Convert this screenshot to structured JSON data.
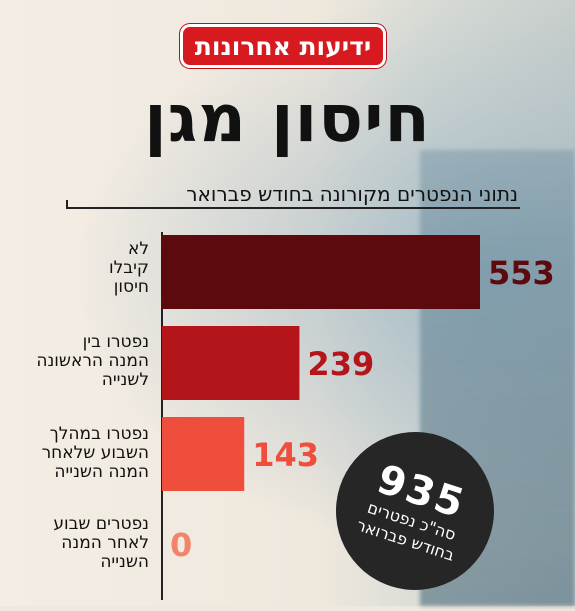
{
  "brand": {
    "logo_text": "ידיעות אחרונות",
    "logo_color": "#d71920"
  },
  "headline": "חיסון מגן",
  "chart_data": {
    "type": "bar",
    "orientation": "horizontal",
    "title": "נתוני הנפטרים מקורונה בחודש פברואר",
    "categories": [
      "לא קיבלו חיסון",
      "נפטרו בין המנה הראשונה לשנייה",
      "נפטרו במהלך השבוע שלאחר המנה השנייה",
      "נפטרים שבוע לאחר המנה השנייה"
    ],
    "category_lines": [
      [
        "לא",
        "קיבלו",
        "חיסון"
      ],
      [
        "נפטרו בין",
        "המנה הראשונה",
        "לשנייה"
      ],
      [
        "נפטרו במהלך",
        "השבוע שלאחר",
        "המנה השנייה"
      ],
      [
        "נפטרים שבוע",
        "לאחר המנה",
        "השנייה"
      ]
    ],
    "values": [
      553,
      239,
      143,
      0
    ],
    "data_labels": [
      "553",
      "239",
      "143",
      "0"
    ],
    "bar_colors": [
      "#5c0a0e",
      "#b3151b",
      "#ef4e3c",
      "#f2846c"
    ],
    "label_colors": [
      "#5c0a0e",
      "#b3151b",
      "#ef4e3c",
      "#f2846c"
    ],
    "xlim": [
      0,
      553
    ],
    "grid": false,
    "legend": "none"
  },
  "total": {
    "value": "935",
    "caption": "סה\"כ נפטרים בחודש פברואר"
  }
}
